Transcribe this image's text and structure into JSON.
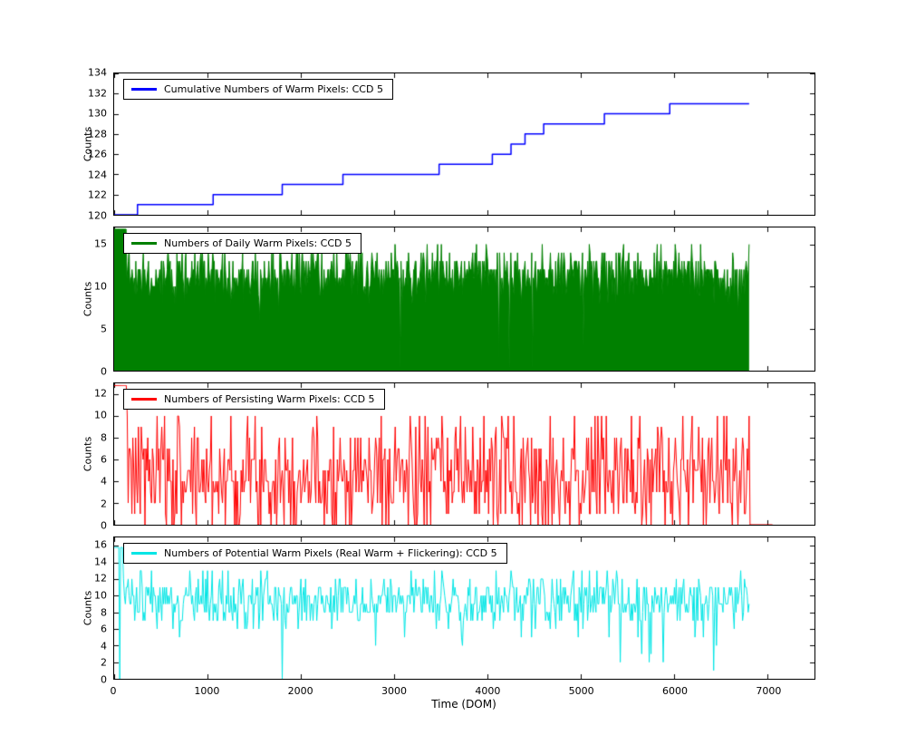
{
  "figure": {
    "xlabel": "Time (DOM)",
    "ylabel": "Counts",
    "background": "#ffffff"
  },
  "x_axis": {
    "lim": [
      0,
      7500
    ],
    "ticks": [
      0,
      1000,
      2000,
      3000,
      4000,
      5000,
      6000,
      7000
    ]
  },
  "chart_data": [
    {
      "type": "step",
      "title": "Cumulative Numbers of Warm Pixels: CCD 5",
      "color": "#0000ff",
      "line_width": 1.5,
      "ylim": [
        120,
        134
      ],
      "yticks": [
        120,
        122,
        124,
        126,
        128,
        130,
        132,
        134
      ],
      "points": [
        [
          0,
          120
        ],
        [
          250,
          121
        ],
        [
          1060,
          122
        ],
        [
          1800,
          123
        ],
        [
          2450,
          124
        ],
        [
          3480,
          125
        ],
        [
          4050,
          126
        ],
        [
          4250,
          127
        ],
        [
          4400,
          128
        ],
        [
          4600,
          129
        ],
        [
          5250,
          130
        ],
        [
          5950,
          131
        ]
      ],
      "x_end": 6800
    },
    {
      "type": "noisy-area",
      "title": "Numbers of Daily Warm Pixels: CCD 5",
      "color": "#008000",
      "line_width": 1,
      "ylim": [
        0,
        17
      ],
      "yticks": [
        0,
        5,
        10,
        15
      ],
      "noise": {
        "seed": 42,
        "x_start": 0,
        "x_end": 6800,
        "step": 8,
        "mean": 11.4,
        "std": 1.6,
        "min": 8,
        "max": 15,
        "round": true,
        "dip_prob": 0.006,
        "dip_amount": 5
      },
      "early_spike": {
        "until": 130,
        "value": 16.8
      },
      "dropouts": [
        {
          "x": 3060,
          "value": 0.3
        },
        {
          "x": 4120,
          "value": 1.5
        },
        {
          "x": 4230,
          "value": 0.3
        },
        {
          "x": 4480,
          "value": 0.3
        }
      ]
    },
    {
      "type": "noisy-line",
      "title": "Numbers of Persisting Warm Pixels: CCD 5",
      "color": "#ff0000",
      "line_width": 1,
      "ylim": [
        0,
        13
      ],
      "yticks": [
        0,
        2,
        4,
        6,
        8,
        10,
        12
      ],
      "noise": {
        "seed": 7,
        "x_start": 0,
        "x_end": 6800,
        "step": 10,
        "mean": 4.6,
        "std": 3.0,
        "min": 0,
        "max": 10,
        "round": true,
        "dip_prob": 0,
        "dip_amount": 0
      },
      "early_spike": {
        "until": 140,
        "value": 12.8
      },
      "tail_zero_to": 7050
    },
    {
      "type": "noisy-line",
      "title": "Numbers of Potential Warm Pixels (Real Warm + Flickering): CCD 5",
      "color": "#00e5e5",
      "line_width": 1,
      "ylim": [
        0,
        17
      ],
      "yticks": [
        0,
        2,
        4,
        6,
        8,
        10,
        12,
        14,
        16
      ],
      "noise": {
        "seed": 13,
        "x_start": 0,
        "x_end": 6800,
        "step": 10,
        "mean": 9.4,
        "std": 1.7,
        "min": 4,
        "max": 13,
        "round": true,
        "dip_prob": 0.01,
        "dip_amount": 6
      },
      "early_spike": {
        "until": 100,
        "value": 15.8
      },
      "dropouts": [
        {
          "x": 60,
          "value": 0
        },
        {
          "x": 1800,
          "value": 0
        },
        {
          "x": 5420,
          "value": 2
        },
        {
          "x": 5650,
          "value": 3
        },
        {
          "x": 5880,
          "value": 2
        },
        {
          "x": 6420,
          "value": 1
        }
      ]
    }
  ]
}
